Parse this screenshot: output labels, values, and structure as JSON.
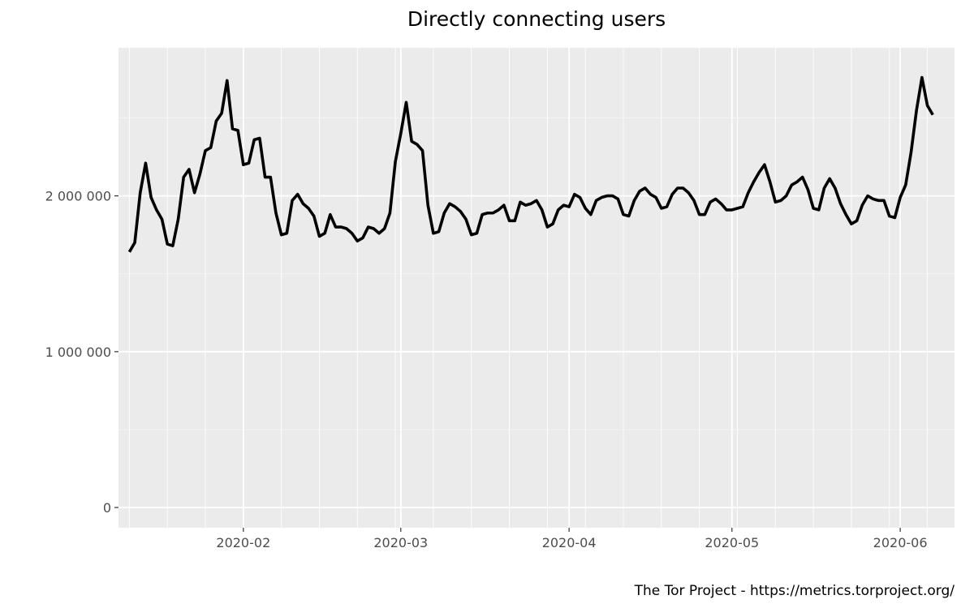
{
  "chart_data": {
    "type": "line",
    "title": "Directly connecting users",
    "caption": "The Tor Project - https://metrics.torproject.org/",
    "xlabel": "",
    "ylabel": "",
    "x_start": "2020-01-11",
    "x_end": "2020-06-08",
    "xlim": [
      "2020-01-09",
      "2020-06-11"
    ],
    "ylim": [
      -130000,
      2950000
    ],
    "x_ticks": [
      {
        "date": "2020-02-01",
        "label": "2020-02"
      },
      {
        "date": "2020-03-01",
        "label": "2020-03"
      },
      {
        "date": "2020-04-01",
        "label": "2020-04"
      },
      {
        "date": "2020-05-01",
        "label": "2020-05"
      },
      {
        "date": "2020-06-01",
        "label": "2020-06"
      }
    ],
    "y_ticks": [
      {
        "value": 0,
        "label": "0"
      },
      {
        "value": 1000000,
        "label": "1 000 000"
      },
      {
        "value": 2000000,
        "label": "2 000 000"
      }
    ],
    "grid": true,
    "legend": "none",
    "colors": {
      "panel_background": "#ebebeb",
      "grid_major": "#ffffff",
      "grid_minor": "#f5f5f5",
      "line": "#000000",
      "tick_text": "#4d4d4d",
      "tick_mark": "#333333"
    },
    "series": [
      {
        "values": [
          1640000,
          1700000,
          2020000,
          2210000,
          1990000,
          1910000,
          1850000,
          1690000,
          1680000,
          1850000,
          2120000,
          2170000,
          2020000,
          2140000,
          2290000,
          2310000,
          2480000,
          2530000,
          2740000,
          2430000,
          2420000,
          2200000,
          2210000,
          2360000,
          2370000,
          2120000,
          2120000,
          1890000,
          1750000,
          1760000,
          1970000,
          2010000,
          1950000,
          1920000,
          1870000,
          1740000,
          1760000,
          1880000,
          1800000,
          1800000,
          1790000,
          1760000,
          1710000,
          1730000,
          1800000,
          1790000,
          1760000,
          1790000,
          1890000,
          2220000,
          2400000,
          2600000,
          2350000,
          2330000,
          2290000,
          1940000,
          1760000,
          1770000,
          1890000,
          1950000,
          1930000,
          1900000,
          1850000,
          1750000,
          1760000,
          1880000,
          1890000,
          1890000,
          1910000,
          1940000,
          1840000,
          1840000,
          1960000,
          1940000,
          1950000,
          1970000,
          1910000,
          1800000,
          1820000,
          1910000,
          1940000,
          1930000,
          2010000,
          1990000,
          1920000,
          1880000,
          1970000,
          1990000,
          2000000,
          2000000,
          1980000,
          1880000,
          1870000,
          1970000,
          2030000,
          2050000,
          2010000,
          1990000,
          1920000,
          1930000,
          2010000,
          2050000,
          2050000,
          2020000,
          1970000,
          1880000,
          1880000,
          1960000,
          1980000,
          1950000,
          1910000,
          1910000,
          1920000,
          1930000,
          2020000,
          2090000,
          2150000,
          2200000,
          2090000,
          1960000,
          1970000,
          2000000,
          2070000,
          2090000,
          2120000,
          2040000,
          1920000,
          1910000,
          2050000,
          2110000,
          2050000,
          1950000,
          1880000,
          1820000,
          1840000,
          1940000,
          2000000,
          1980000,
          1970000,
          1970000,
          1870000,
          1860000,
          1990000,
          2070000,
          2280000,
          2550000,
          2760000,
          2580000,
          2520000
        ]
      }
    ]
  }
}
